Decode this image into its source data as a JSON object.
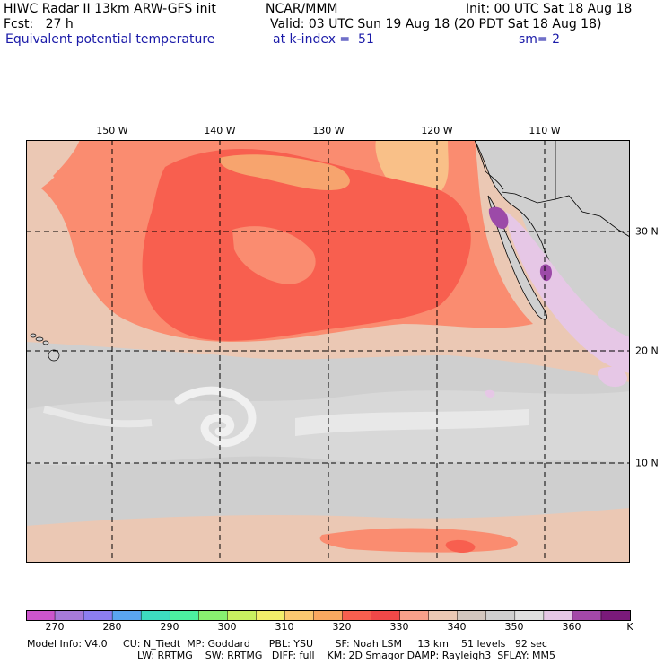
{
  "header": {
    "line1_left": "HIWC Radar II 13km ARW-GFS init",
    "line1_mid": "NCAR/MMM",
    "line1_right": "Init: 00 UTC Sat 18 Aug 18",
    "line2_left": "Fcst:   27 h",
    "line2_right": "Valid: 03 UTC Sun 19 Aug 18 (20 PDT Sat 18 Aug 18)",
    "line3_left": "Equivalent potential temperature",
    "line3_mid": "at k-index =  51",
    "line3_right": "sm= 2"
  },
  "map": {
    "lon_labels": [
      "150 W",
      "140 W",
      "130 W",
      "120 W",
      "110 W"
    ],
    "lat_labels": [
      "30 N",
      "20 N",
      "10 N"
    ],
    "colors": {
      "ocean_gray": "#cfcfcf",
      "light_gray": "#d8d8d8",
      "tan": "#ebc8b4",
      "salmon": "#fa8c70",
      "orange": "#f7a46e",
      "red": "#f85f4f",
      "light_orange": "#f9c088",
      "white_cloud": "#f0f0f0",
      "lavender": "#e6c7e6",
      "purple": "#9c4aa8",
      "dark_purple": "#7a1a7a"
    }
  },
  "colorbar": {
    "unit": "K",
    "tick_labels": [
      "270",
      "280",
      "290",
      "300",
      "310",
      "320",
      "330",
      "340",
      "350",
      "360"
    ],
    "colors": [
      "#cc55cc",
      "#a67ad9",
      "#8c7ef0",
      "#5aa5f0",
      "#3ddcc0",
      "#4cf0a0",
      "#88f070",
      "#c8f060",
      "#f2ee6a",
      "#fbc870",
      "#f9a860",
      "#f85f4f",
      "#f04848",
      "#f8a08a",
      "#ebc8b4",
      "#d2c6be",
      "#cfcfcf",
      "#e0e0e0",
      "#e6c7e6",
      "#a448a8",
      "#7a1a7a"
    ]
  },
  "footer": {
    "line1": "Model Info: V4.0     CU: N_Tiedt  MP: Goddard      PBL: YSU       SF: Noah LSM     13 km    51 levels   92 sec",
    "line2": "LW: RRTMG    SW: RRTMG   DIFF: full    KM: 2D Smagor DAMP: Rayleigh3  SFLAY: MM5"
  }
}
